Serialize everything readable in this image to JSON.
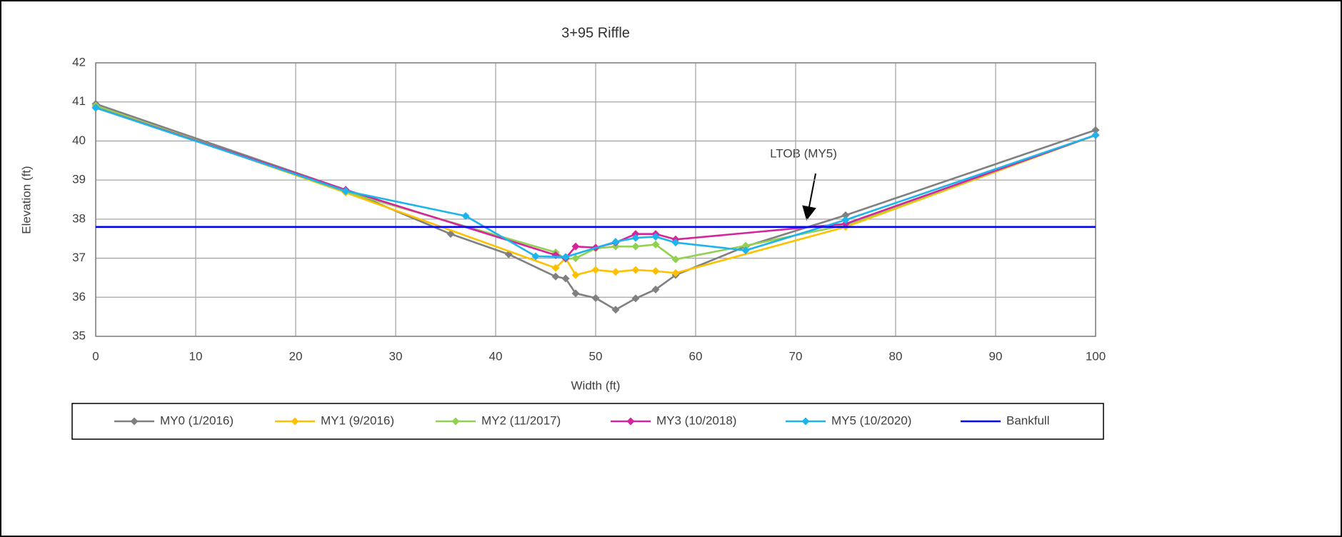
{
  "chart_data": {
    "type": "line",
    "title": "3+95 Riffle",
    "x_label": "Width (ft)",
    "y_label": "Elevation (ft)",
    "annotations": [
      "LTOB (MY5)"
    ],
    "xlim": [
      0,
      100
    ],
    "xticks": [
      0,
      10,
      20,
      30,
      40,
      50,
      60,
      70,
      80,
      90,
      100
    ],
    "ylim": [
      35,
      42
    ],
    "yticks": [
      35,
      36,
      37,
      38,
      39,
      40,
      41,
      42
    ],
    "grid": true,
    "legend": "bottom",
    "series": [
      {
        "name": "MY0 (1/2016)",
        "color": "#808080",
        "marker": "diamond",
        "x": [
          0,
          25,
          35.5,
          41.3,
          46,
          47,
          48,
          50,
          52,
          54,
          56,
          58,
          65,
          75,
          100
        ],
        "values": [
          40.95,
          38.75,
          37.62,
          37.1,
          36.53,
          36.48,
          36.1,
          35.98,
          35.68,
          35.97,
          36.2,
          36.57,
          37.3,
          38.1,
          40.28
        ]
      },
      {
        "name": "MY1 (9/2016)",
        "color": "#ffc000",
        "marker": "diamond",
        "x": [
          0,
          25,
          46,
          47,
          48,
          50,
          52,
          54,
          56,
          58,
          75,
          100
        ],
        "values": [
          40.9,
          38.68,
          36.75,
          37.0,
          36.57,
          36.7,
          36.65,
          36.7,
          36.67,
          36.62,
          37.8,
          40.15
        ]
      },
      {
        "name": "MY2 (11/2017)",
        "color": "#92d050",
        "marker": "diamond",
        "x": [
          0,
          25,
          46,
          47,
          48,
          50,
          52,
          54,
          56,
          58,
          65,
          75,
          100
        ],
        "values": [
          40.9,
          38.7,
          37.15,
          36.98,
          37.0,
          37.25,
          37.3,
          37.3,
          37.35,
          36.97,
          37.32,
          37.85,
          40.15
        ]
      },
      {
        "name": "MY3 (10/2018)",
        "color": "#d6249c",
        "marker": "diamond",
        "x": [
          0,
          25,
          46,
          47,
          48,
          50,
          52,
          54,
          56,
          58,
          75,
          100
        ],
        "values": [
          40.85,
          38.75,
          37.08,
          37.0,
          37.3,
          37.27,
          37.4,
          37.62,
          37.62,
          37.48,
          37.88,
          40.15
        ]
      },
      {
        "name": "MY5 (10/2020)",
        "color": "#1cb4ec",
        "marker": "diamond",
        "x": [
          0,
          25,
          37,
          44,
          47,
          52,
          54,
          56,
          58,
          65,
          75,
          100
        ],
        "values": [
          40.85,
          38.72,
          38.08,
          37.05,
          37.03,
          37.42,
          37.52,
          37.55,
          37.4,
          37.2,
          37.98,
          40.15
        ]
      },
      {
        "name": "Bankfull",
        "color": "#0000ff",
        "marker": "none",
        "x": [
          0,
          100
        ],
        "values": [
          37.8,
          37.8
        ]
      }
    ]
  }
}
